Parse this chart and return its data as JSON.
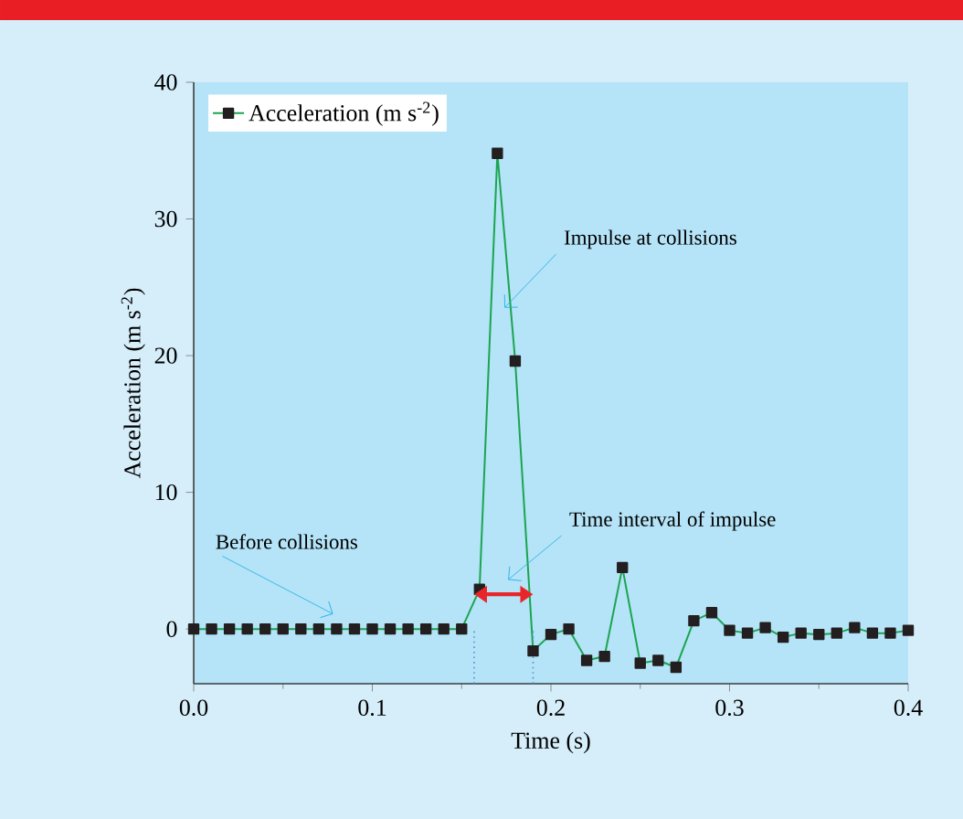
{
  "chart_data": {
    "type": "line",
    "xlabel": "Time (s)",
    "ylabel": "Acceleration (m s$^{-2}$)",
    "x": [
      0,
      0.01,
      0.02,
      0.03,
      0.04,
      0.05,
      0.06,
      0.07,
      0.08,
      0.09,
      0.1,
      0.11,
      0.12,
      0.13,
      0.14,
      0.15,
      0.16,
      0.17,
      0.18,
      0.19,
      0.2,
      0.21,
      0.22,
      0.23,
      0.24,
      0.25,
      0.26,
      0.27,
      0.28,
      0.29,
      0.3,
      0.31,
      0.32,
      0.33,
      0.34,
      0.35,
      0.36,
      0.37,
      0.38,
      0.39,
      0.4
    ],
    "series": [
      {
        "name": "Acceleration (m s$^{-2}$)",
        "color": "#1aa550",
        "values": [
          0,
          0,
          0,
          0,
          0,
          0,
          0,
          0,
          0,
          0,
          0,
          0,
          0,
          0,
          0,
          0,
          2.9,
          34.8,
          19.6,
          -1.6,
          -0.4,
          0,
          -2.3,
          -2.0,
          4.5,
          -2.5,
          -2.3,
          -2.8,
          0.6,
          1.2,
          -0.1,
          -0.3,
          0.1,
          -0.6,
          -0.3,
          -0.4,
          -0.3,
          0.1,
          -0.3,
          -0.3,
          -0.1
        ]
      }
    ],
    "marker": "square",
    "legend": "top left",
    "grid": false,
    "xlim": [
      0,
      0.4
    ],
    "ylim": [
      -4,
      40
    ],
    "xticks": [
      {
        "value": 0,
        "label": "0.0"
      },
      {
        "value": 0.1,
        "label": "0.1"
      },
      {
        "value": 0.2,
        "label": "0.2"
      },
      {
        "value": 0.3,
        "label": "0.3"
      },
      {
        "value": 0.4,
        "label": "0.4"
      }
    ],
    "yticks": [
      0,
      10,
      20,
      30,
      40
    ],
    "ref_lines": [
      {
        "axis": "x",
        "value": 0.157,
        "color": "#5b8fd0",
        "line_style": "dotted"
      },
      {
        "axis": "x",
        "value": 0.19,
        "color": "#5b8fd0",
        "line_style": "dotted"
      }
    ],
    "annotations": [
      {
        "text": "Impulse at collisions",
        "x": 0.174,
        "y": 23.5
      },
      "Time interval of impulse",
      "Before collisions"
    ]
  }
}
